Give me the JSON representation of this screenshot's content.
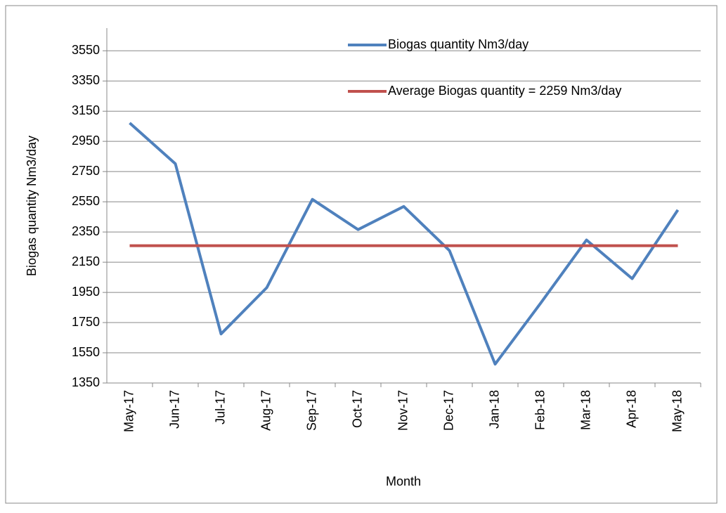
{
  "chart_data": {
    "type": "line",
    "x_label": "Month",
    "y_label": "Biogas quantity Nm3/day",
    "categories": [
      "May-17",
      "Jun-17",
      "Jul-17",
      "Aug-17",
      "Sep-17",
      "Oct-17",
      "Nov-17",
      "Dec-17",
      "Jan-18",
      "Feb-18",
      "Mar-18",
      "Apr-18",
      "May-18"
    ],
    "series": [
      {
        "name": "Biogas quantity Nm3/day",
        "color": "#4f81bd",
        "values": [
          3072,
          2802,
          1675,
          1981,
          2566,
          2366,
          2519,
          2227,
          1475,
          1880,
          2297,
          2041,
          2496
        ]
      },
      {
        "name": "Average Biogas quantity = 2259 Nm3/day",
        "color": "#c0504d",
        "values": [
          2259,
          2259,
          2259,
          2259,
          2259,
          2259,
          2259,
          2259,
          2259,
          2259,
          2259,
          2259,
          2259
        ]
      }
    ],
    "ylim": [
      1350,
      3700
    ],
    "yticks": [
      1350,
      1550,
      1750,
      1950,
      2150,
      2350,
      2550,
      2750,
      2950,
      3150,
      3350,
      3550
    ],
    "grid": true
  }
}
